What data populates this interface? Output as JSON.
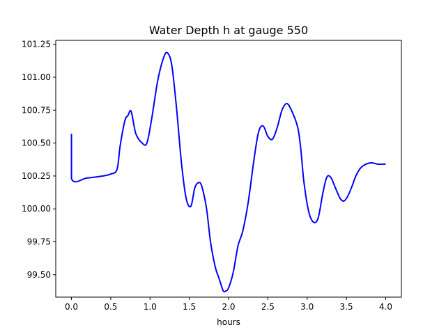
{
  "chart_data": {
    "type": "line",
    "title": "Water Depth h at gauge 550",
    "xlabel": "hours",
    "ylabel": "",
    "xlim": [
      -0.2,
      4.2
    ],
    "ylim": [
      99.33,
      101.28
    ],
    "xticks": [
      0.0,
      0.5,
      1.0,
      1.5,
      2.0,
      2.5,
      3.0,
      3.5,
      4.0
    ],
    "xtick_labels": [
      "0.0",
      "0.5",
      "1.0",
      "1.5",
      "2.0",
      "2.5",
      "3.0",
      "3.5",
      "4.0"
    ],
    "yticks": [
      99.5,
      99.75,
      100.0,
      100.25,
      100.5,
      100.75,
      101.0,
      101.25
    ],
    "ytick_labels": [
      "99.50",
      "99.75",
      "100.00",
      "100.25",
      "100.50",
      "100.75",
      "101.00",
      "101.25"
    ],
    "grid": false,
    "series": [
      {
        "color": "#0000ff",
        "x": [
          0.0,
          0.0,
          0.2,
          0.4,
          0.5,
          0.58,
          0.62,
          0.68,
          0.72,
          0.76,
          0.82,
          0.9,
          0.96,
          1.02,
          1.1,
          1.18,
          1.23,
          1.28,
          1.34,
          1.4,
          1.46,
          1.52,
          1.57,
          1.62,
          1.66,
          1.72,
          1.77,
          1.83,
          1.88,
          1.93,
          1.96,
          2.0,
          2.06,
          2.12,
          2.18,
          2.25,
          2.32,
          2.38,
          2.44,
          2.5,
          2.56,
          2.62,
          2.68,
          2.74,
          2.8,
          2.88,
          2.92,
          2.96,
          3.02,
          3.08,
          3.14,
          3.2,
          3.25,
          3.3,
          3.36,
          3.42,
          3.47,
          3.52,
          3.57,
          3.62,
          3.68,
          3.75,
          3.82,
          3.9,
          3.97,
          4.0
        ],
        "y": [
          100.57,
          100.23,
          100.235,
          100.25,
          100.265,
          100.3,
          100.48,
          100.67,
          100.71,
          100.74,
          100.57,
          100.5,
          100.5,
          100.68,
          100.98,
          101.16,
          101.18,
          101.08,
          100.75,
          100.35,
          100.08,
          100.02,
          100.16,
          100.2,
          100.17,
          100.0,
          99.75,
          99.56,
          99.47,
          99.38,
          99.375,
          99.4,
          99.52,
          99.72,
          99.83,
          100.05,
          100.36,
          100.58,
          100.63,
          100.55,
          100.53,
          100.62,
          100.75,
          100.8,
          100.75,
          100.62,
          100.45,
          100.2,
          99.98,
          99.9,
          99.93,
          100.12,
          100.24,
          100.24,
          100.16,
          100.08,
          100.06,
          100.1,
          100.17,
          100.25,
          100.31,
          100.34,
          100.35,
          100.34,
          100.34,
          100.34
        ]
      }
    ]
  }
}
